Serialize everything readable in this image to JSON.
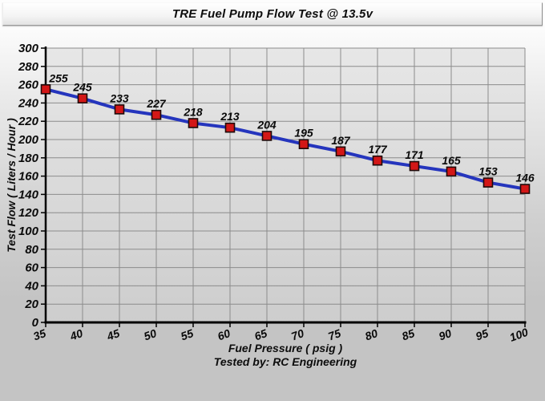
{
  "window": {
    "title": "TRE Fuel Pump Flow Test @ 13.5v"
  },
  "chart_data": {
    "type": "line",
    "title": "TRE Fuel Pump Flow Test @ 13.5v",
    "xlabel": "Fuel Pressure ( psig )",
    "ylabel": "Test Flow ( Liters / Hour )",
    "footer": "Tested by: RC Engineering",
    "x": [
      35,
      40,
      45,
      50,
      55,
      60,
      65,
      70,
      75,
      80,
      85,
      90,
      95,
      100
    ],
    "values": [
      255,
      245,
      233,
      227,
      218,
      213,
      204,
      195,
      187,
      177,
      171,
      165,
      153,
      146
    ],
    "xlim": [
      35,
      100
    ],
    "ylim": [
      0,
      300
    ],
    "x_tick_step": 5,
    "y_tick_step": 20,
    "grid": true,
    "legend": "none",
    "data_labels": true,
    "colors": {
      "line": "#2535bd",
      "marker_fill": "#d31717",
      "marker_border": "#1e0a0a",
      "gridline": "#8c8c8c",
      "axis": "#000000",
      "label_text": "#0a0a0a",
      "plot_fill_top": "#e7e7e7",
      "plot_fill_bottom": "#cdcdcd"
    }
  }
}
